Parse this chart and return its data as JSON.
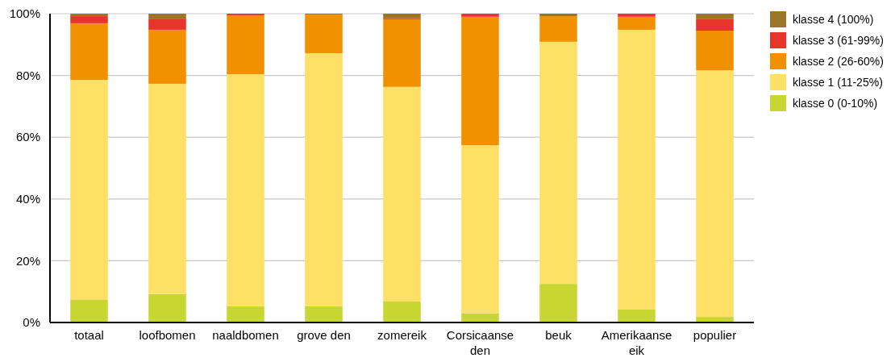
{
  "chart_data": {
    "type": "bar",
    "stacked": true,
    "categories": [
      "totaal",
      "loofbomen",
      "naaldbomen",
      "grove den",
      "zomereik",
      "Corsicaanse den",
      "beuk",
      "Amerikaanse eik",
      "populier"
    ],
    "series": [
      {
        "name": "klasse 0 (0-10%)",
        "color": "#c8d631",
        "values": [
          7.3,
          9.2,
          5.3,
          5.3,
          6.8,
          3.0,
          12.5,
          4.2,
          1.8
        ]
      },
      {
        "name": "klasse 1 (11-25%)",
        "color": "#fee066",
        "values": [
          71.3,
          68.1,
          75.1,
          81.9,
          69.5,
          54.4,
          78.4,
          90.6,
          79.9
        ]
      },
      {
        "name": "klasse 2 (26-60%)",
        "color": "#f29100",
        "values": [
          18.3,
          17.5,
          19.1,
          12.5,
          21.9,
          41.6,
          8.3,
          4.2,
          12.8
        ]
      },
      {
        "name": "klasse 3 (61-99%)",
        "color": "#e8352b",
        "values": [
          2.3,
          3.6,
          0.5,
          0,
          0.4,
          1.0,
          0,
          1.0,
          3.7
        ]
      },
      {
        "name": "klasse 4 (100%)",
        "color": "#9c7628",
        "values": [
          0.8,
          1.6,
          0,
          0.3,
          1.4,
          0,
          0.8,
          0,
          1.8
        ]
      }
    ],
    "ylim": [
      0,
      100
    ],
    "yticks": [
      {
        "value": 0,
        "label": "0%"
      },
      {
        "value": 20,
        "label": "20%"
      },
      {
        "value": 40,
        "label": "40%"
      },
      {
        "value": 60,
        "label": "60%"
      },
      {
        "value": 80,
        "label": "80%"
      },
      {
        "value": 100,
        "label": "100%"
      }
    ],
    "grid": "y",
    "legend": "top right"
  }
}
